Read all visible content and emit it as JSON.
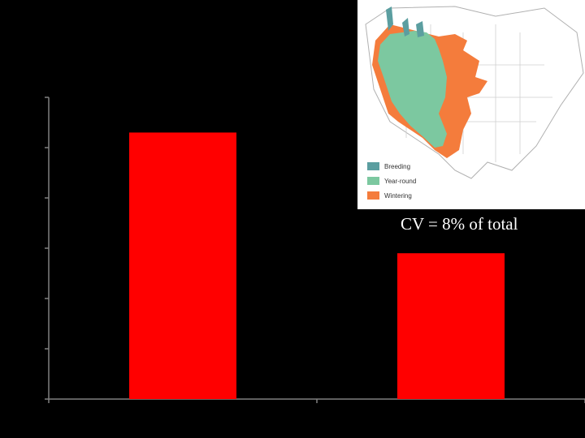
{
  "chart_data": {
    "type": "bar",
    "categories": [
      "",
      ""
    ],
    "values": [
      5.3,
      2.9
    ],
    "ylim": [
      0,
      6
    ],
    "ytick_count": 6,
    "grid": false,
    "bar_color": "#ff0000",
    "axis_color": "#808080"
  },
  "annotation": "CV = 8% of total",
  "map": {
    "legend": [
      {
        "label": "Breeding",
        "color": "#5b9ea0"
      },
      {
        "label": "Year-round",
        "color": "#7cc8a0"
      },
      {
        "label": "Wintering",
        "color": "#f47c3c"
      }
    ]
  }
}
